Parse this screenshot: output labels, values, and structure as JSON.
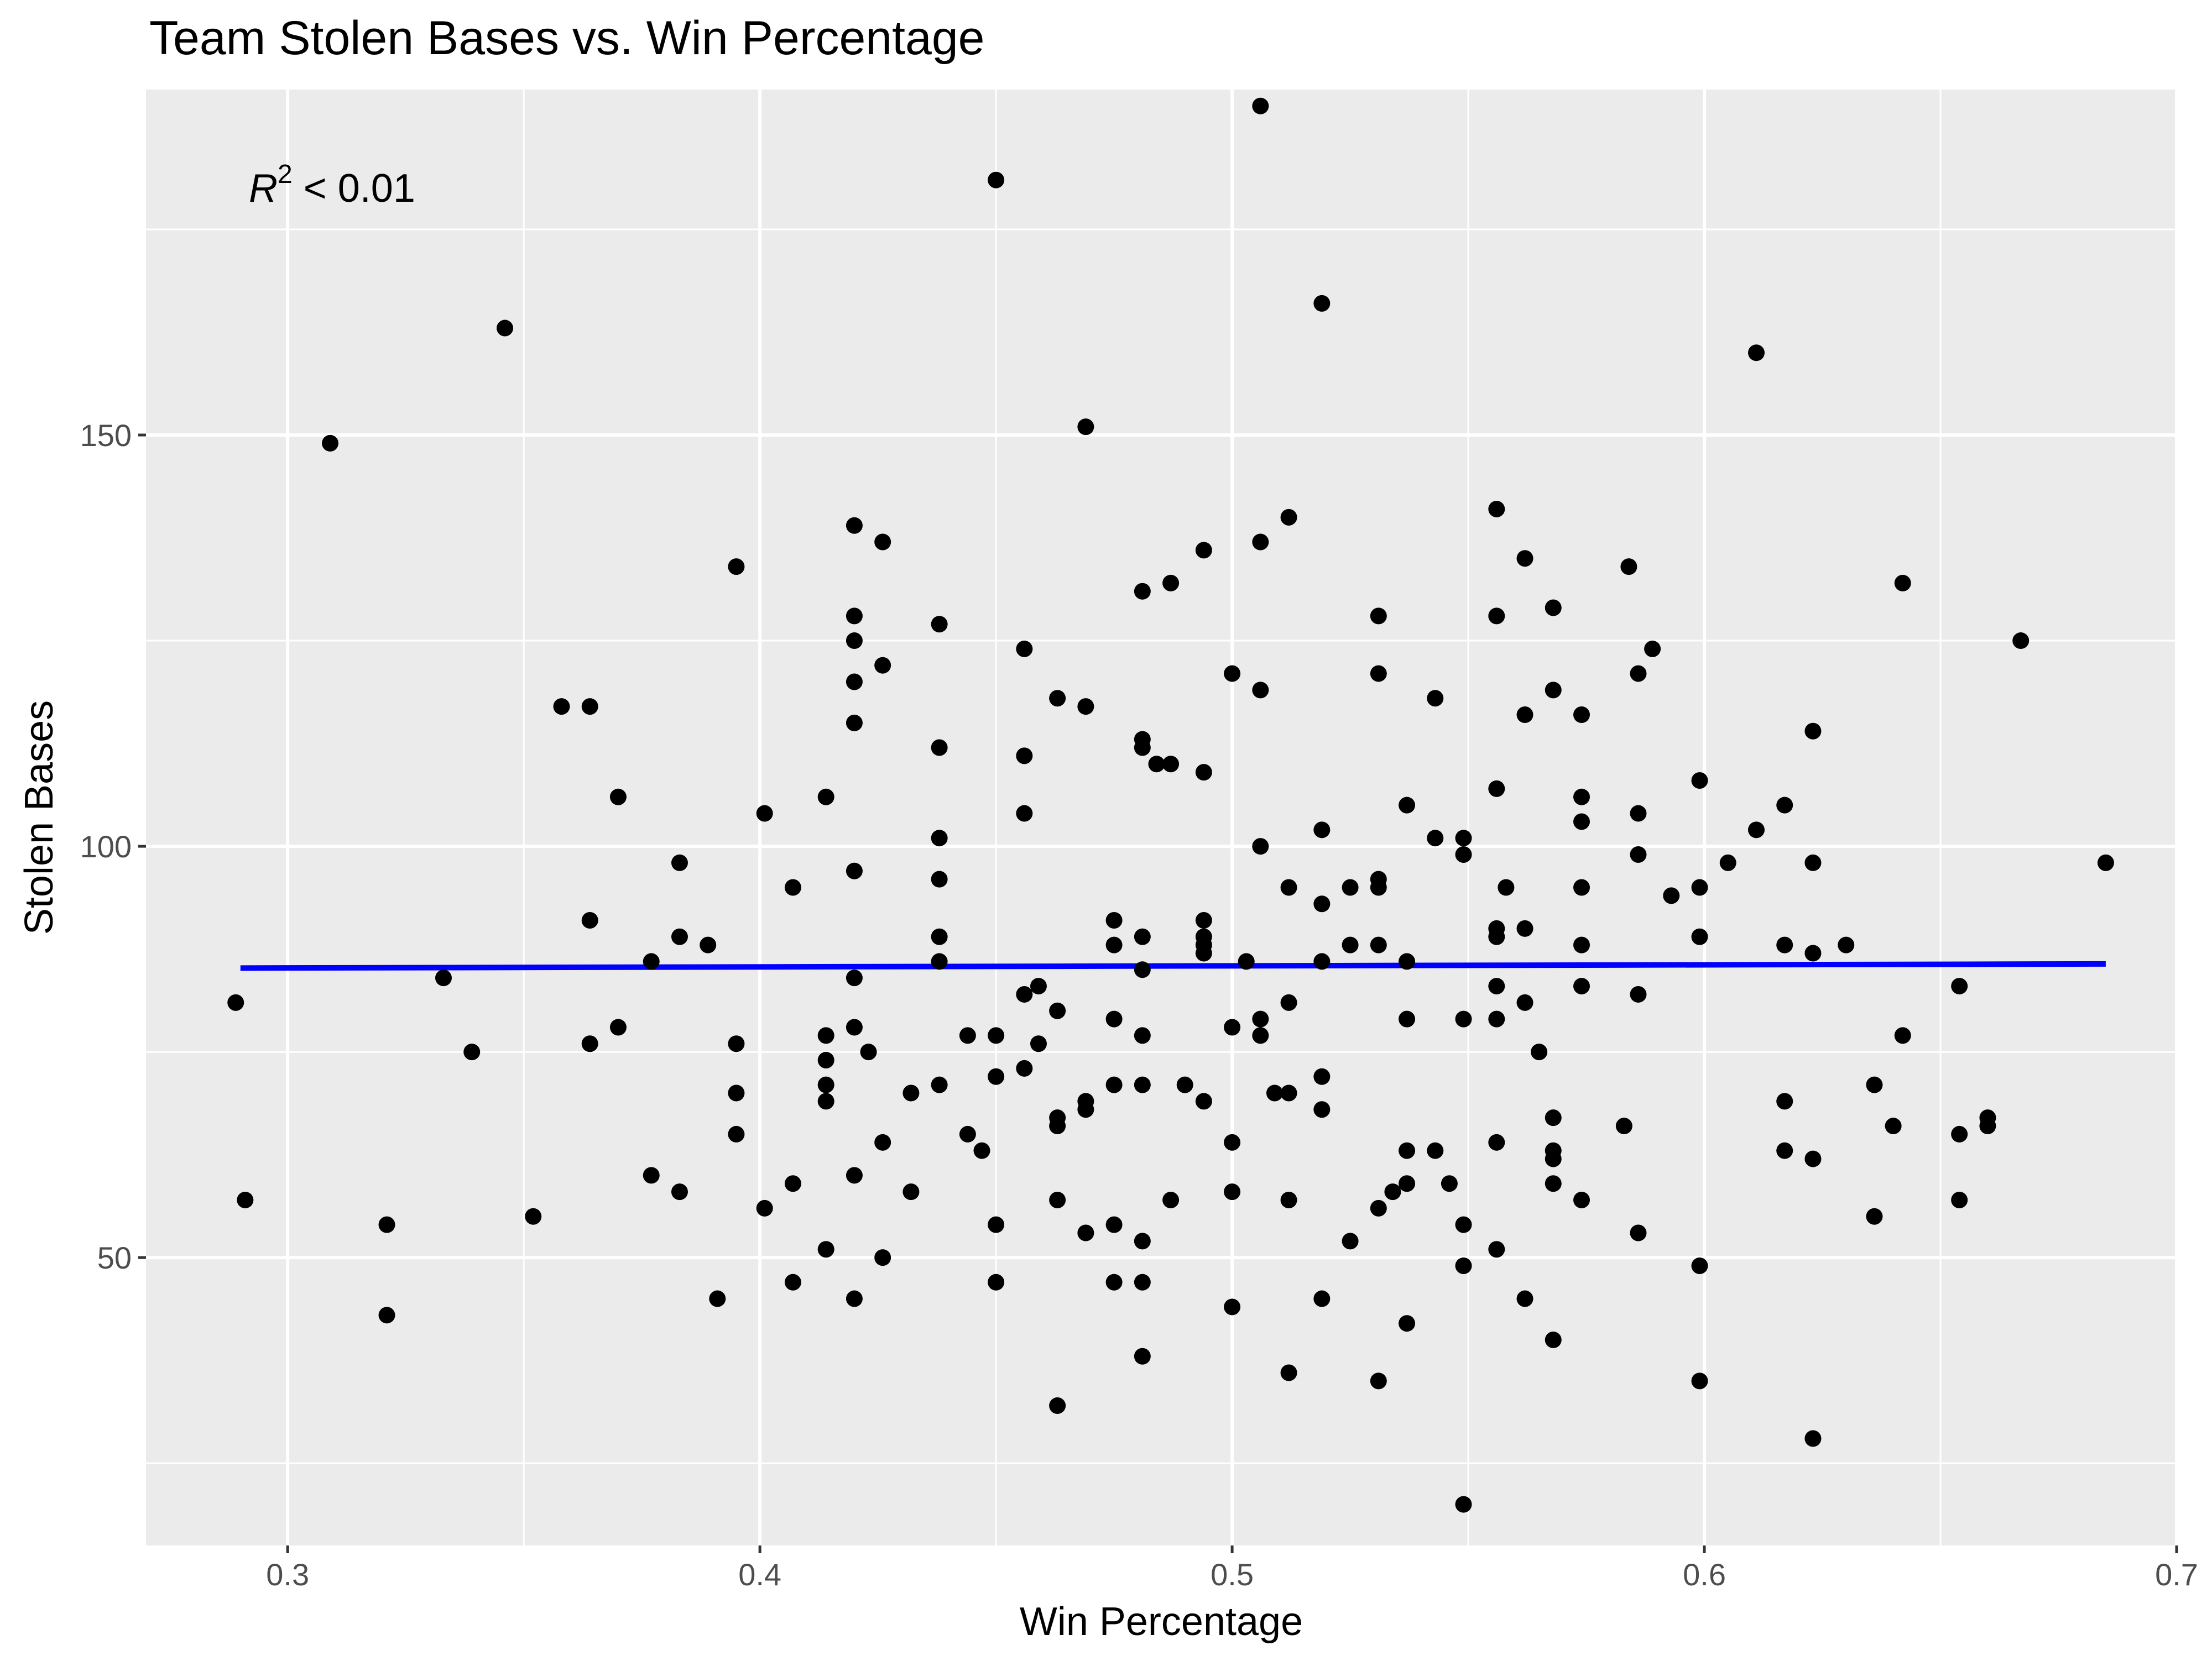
{
  "chart_data": {
    "type": "scatter",
    "title": "Team Stolen Bases vs. Win Percentage",
    "xlabel": "Win Percentage",
    "ylabel": "Stolen Bases",
    "xlim": [
      0.27,
      0.7
    ],
    "ylim": [
      15,
      192
    ],
    "xticks": [
      "0.3",
      "0.4",
      "0.5",
      "0.6",
      "0.7"
    ],
    "xtick_values": [
      0.3,
      0.4,
      0.5,
      0.6,
      0.7
    ],
    "yticks": [
      "50",
      "100",
      "150"
    ],
    "ytick_values": [
      50,
      100,
      150
    ],
    "grid": true,
    "annotation": {
      "var": "R",
      "sup": "2",
      "text": " < 0.01"
    },
    "series": [
      {
        "color": "#000000",
        "points": [
          [
            0.289,
            81
          ],
          [
            0.291,
            57
          ],
          [
            0.309,
            149
          ],
          [
            0.321,
            54
          ],
          [
            0.321,
            43
          ],
          [
            0.333,
            84
          ],
          [
            0.339,
            75
          ],
          [
            0.346,
            163
          ],
          [
            0.352,
            55
          ],
          [
            0.358,
            117
          ],
          [
            0.364,
            117
          ],
          [
            0.364,
            91
          ],
          [
            0.364,
            76
          ],
          [
            0.37,
            106
          ],
          [
            0.37,
            78
          ],
          [
            0.377,
            86
          ],
          [
            0.377,
            60
          ],
          [
            0.383,
            98
          ],
          [
            0.383,
            89
          ],
          [
            0.383,
            58
          ],
          [
            0.389,
            88
          ],
          [
            0.391,
            45
          ],
          [
            0.395,
            134
          ],
          [
            0.395,
            76
          ],
          [
            0.395,
            70
          ],
          [
            0.395,
            65
          ],
          [
            0.401,
            104
          ],
          [
            0.401,
            56
          ],
          [
            0.407,
            95
          ],
          [
            0.407,
            59
          ],
          [
            0.407,
            47
          ],
          [
            0.414,
            106
          ],
          [
            0.414,
            77
          ],
          [
            0.414,
            74
          ],
          [
            0.414,
            71
          ],
          [
            0.414,
            69
          ],
          [
            0.414,
            51
          ],
          [
            0.42,
            139
          ],
          [
            0.42,
            128
          ],
          [
            0.42,
            125
          ],
          [
            0.42,
            120
          ],
          [
            0.42,
            115
          ],
          [
            0.42,
            97
          ],
          [
            0.42,
            84
          ],
          [
            0.42,
            78
          ],
          [
            0.42,
            60
          ],
          [
            0.42,
            45
          ],
          [
            0.423,
            75
          ],
          [
            0.426,
            137
          ],
          [
            0.426,
            122
          ],
          [
            0.426,
            64
          ],
          [
            0.426,
            50
          ],
          [
            0.432,
            70
          ],
          [
            0.432,
            58
          ],
          [
            0.438,
            127
          ],
          [
            0.438,
            112
          ],
          [
            0.438,
            101
          ],
          [
            0.438,
            96
          ],
          [
            0.438,
            89
          ],
          [
            0.438,
            86
          ],
          [
            0.438,
            71
          ],
          [
            0.444,
            77
          ],
          [
            0.444,
            65
          ],
          [
            0.447,
            63
          ],
          [
            0.45,
            181
          ],
          [
            0.45,
            77
          ],
          [
            0.45,
            72
          ],
          [
            0.45,
            54
          ],
          [
            0.45,
            47
          ],
          [
            0.456,
            124
          ],
          [
            0.456,
            111
          ],
          [
            0.456,
            104
          ],
          [
            0.456,
            82
          ],
          [
            0.456,
            73
          ],
          [
            0.459,
            83
          ],
          [
            0.459,
            76
          ],
          [
            0.463,
            118
          ],
          [
            0.463,
            80
          ],
          [
            0.463,
            67
          ],
          [
            0.463,
            66
          ],
          [
            0.463,
            57
          ],
          [
            0.463,
            32
          ],
          [
            0.469,
            151
          ],
          [
            0.469,
            117
          ],
          [
            0.469,
            69
          ],
          [
            0.469,
            68
          ],
          [
            0.469,
            53
          ],
          [
            0.475,
            91
          ],
          [
            0.475,
            88
          ],
          [
            0.475,
            79
          ],
          [
            0.475,
            71
          ],
          [
            0.475,
            54
          ],
          [
            0.475,
            47
          ],
          [
            0.481,
            131
          ],
          [
            0.481,
            113
          ],
          [
            0.481,
            112
          ],
          [
            0.481,
            89
          ],
          [
            0.481,
            85
          ],
          [
            0.481,
            77
          ],
          [
            0.481,
            71
          ],
          [
            0.481,
            52
          ],
          [
            0.481,
            47
          ],
          [
            0.481,
            38
          ],
          [
            0.484,
            110
          ],
          [
            0.487,
            132
          ],
          [
            0.487,
            110
          ],
          [
            0.487,
            57
          ],
          [
            0.49,
            71
          ],
          [
            0.494,
            136
          ],
          [
            0.494,
            109
          ],
          [
            0.494,
            91
          ],
          [
            0.494,
            89
          ],
          [
            0.494,
            88
          ],
          [
            0.494,
            87
          ],
          [
            0.494,
            69
          ],
          [
            0.5,
            121
          ],
          [
            0.5,
            78
          ],
          [
            0.5,
            64
          ],
          [
            0.5,
            58
          ],
          [
            0.5,
            44
          ],
          [
            0.503,
            86
          ],
          [
            0.506,
            190
          ],
          [
            0.506,
            137
          ],
          [
            0.506,
            119
          ],
          [
            0.506,
            100
          ],
          [
            0.506,
            79
          ],
          [
            0.506,
            77
          ],
          [
            0.509,
            70
          ],
          [
            0.512,
            140
          ],
          [
            0.512,
            95
          ],
          [
            0.512,
            81
          ],
          [
            0.512,
            70
          ],
          [
            0.512,
            57
          ],
          [
            0.512,
            36
          ],
          [
            0.519,
            166
          ],
          [
            0.519,
            102
          ],
          [
            0.519,
            93
          ],
          [
            0.519,
            86
          ],
          [
            0.519,
            72
          ],
          [
            0.519,
            68
          ],
          [
            0.519,
            45
          ],
          [
            0.525,
            95
          ],
          [
            0.525,
            88
          ],
          [
            0.525,
            52
          ],
          [
            0.531,
            128
          ],
          [
            0.531,
            121
          ],
          [
            0.531,
            96
          ],
          [
            0.531,
            95
          ],
          [
            0.531,
            88
          ],
          [
            0.531,
            56
          ],
          [
            0.531,
            35
          ],
          [
            0.534,
            58
          ],
          [
            0.537,
            105
          ],
          [
            0.537,
            86
          ],
          [
            0.537,
            79
          ],
          [
            0.537,
            63
          ],
          [
            0.537,
            59
          ],
          [
            0.537,
            42
          ],
          [
            0.543,
            118
          ],
          [
            0.543,
            101
          ],
          [
            0.543,
            63
          ],
          [
            0.546,
            59
          ],
          [
            0.549,
            101
          ],
          [
            0.549,
            99
          ],
          [
            0.549,
            79
          ],
          [
            0.549,
            54
          ],
          [
            0.549,
            49
          ],
          [
            0.549,
            20
          ],
          [
            0.556,
            141
          ],
          [
            0.556,
            128
          ],
          [
            0.556,
            107
          ],
          [
            0.556,
            90
          ],
          [
            0.556,
            89
          ],
          [
            0.556,
            83
          ],
          [
            0.556,
            79
          ],
          [
            0.556,
            64
          ],
          [
            0.556,
            51
          ],
          [
            0.558,
            95
          ],
          [
            0.562,
            135
          ],
          [
            0.562,
            116
          ],
          [
            0.562,
            90
          ],
          [
            0.562,
            81
          ],
          [
            0.562,
            45
          ],
          [
            0.565,
            75
          ],
          [
            0.568,
            129
          ],
          [
            0.568,
            119
          ],
          [
            0.568,
            67
          ],
          [
            0.568,
            63
          ],
          [
            0.568,
            62
          ],
          [
            0.568,
            59
          ],
          [
            0.568,
            40
          ],
          [
            0.574,
            116
          ],
          [
            0.574,
            106
          ],
          [
            0.574,
            103
          ],
          [
            0.574,
            95
          ],
          [
            0.574,
            88
          ],
          [
            0.574,
            83
          ],
          [
            0.574,
            57
          ],
          [
            0.583,
            66
          ],
          [
            0.584,
            134
          ],
          [
            0.586,
            121
          ],
          [
            0.586,
            104
          ],
          [
            0.586,
            99
          ],
          [
            0.586,
            82
          ],
          [
            0.586,
            53
          ],
          [
            0.589,
            124
          ],
          [
            0.593,
            94
          ],
          [
            0.599,
            108
          ],
          [
            0.599,
            95
          ],
          [
            0.599,
            89
          ],
          [
            0.599,
            49
          ],
          [
            0.599,
            35
          ],
          [
            0.605,
            98
          ],
          [
            0.611,
            160
          ],
          [
            0.611,
            102
          ],
          [
            0.617,
            105
          ],
          [
            0.617,
            88
          ],
          [
            0.617,
            69
          ],
          [
            0.617,
            63
          ],
          [
            0.623,
            114
          ],
          [
            0.623,
            98
          ],
          [
            0.623,
            87
          ],
          [
            0.623,
            62
          ],
          [
            0.623,
            28
          ],
          [
            0.63,
            88
          ],
          [
            0.636,
            71
          ],
          [
            0.636,
            55
          ],
          [
            0.64,
            66
          ],
          [
            0.642,
            132
          ],
          [
            0.642,
            77
          ],
          [
            0.654,
            83
          ],
          [
            0.654,
            65
          ],
          [
            0.654,
            57
          ],
          [
            0.66,
            67
          ],
          [
            0.66,
            66
          ],
          [
            0.667,
            125
          ],
          [
            0.685,
            98
          ]
        ]
      }
    ],
    "fit_line": {
      "color": "#0000ff",
      "x": [
        0.29,
        0.685
      ],
      "y": [
        85.2,
        85.7
      ]
    }
  }
}
